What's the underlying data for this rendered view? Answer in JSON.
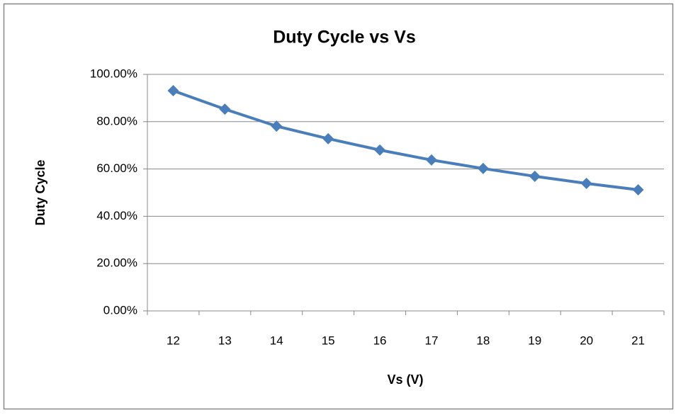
{
  "chart_data": {
    "type": "line",
    "title": "Duty Cycle vs Vs",
    "x_label": "Vs (V)",
    "y_label": "Duty Cycle",
    "categories": [
      "12",
      "13",
      "14",
      "15",
      "16",
      "17",
      "18",
      "19",
      "20",
      "21"
    ],
    "series": [
      {
        "name": "Duty Cycle",
        "color": "#4a7ebb",
        "values": [
          93.1,
          85.3,
          78.1,
          72.8,
          68.0,
          63.8,
          60.2,
          56.9,
          53.9,
          51.2
        ]
      }
    ],
    "ylim": [
      0,
      100
    ],
    "yticks": [
      {
        "value": 0,
        "label": "0.00%"
      },
      {
        "value": 20,
        "label": "20.00%"
      },
      {
        "value": 40,
        "label": "40.00%"
      },
      {
        "value": 60,
        "label": "60.00%"
      },
      {
        "value": 80,
        "label": "80.00%"
      },
      {
        "value": 100,
        "label": "100.00%"
      }
    ],
    "grid": true
  }
}
